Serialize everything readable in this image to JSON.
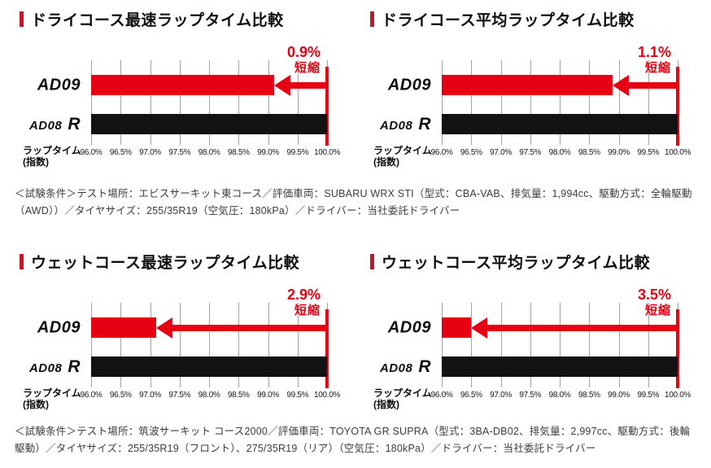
{
  "colors": {
    "brand_red": "#e60012",
    "title_marker_red": "#b81c2c",
    "bar_black": "#121212",
    "gridline_gray": "#a3a3a3",
    "note_text": "#3c3c3c"
  },
  "axis": {
    "label_line1": "ラップタイム",
    "label_line2": "(指数)",
    "min": 96.0,
    "max": 100.0,
    "ticks": [
      "96.0%",
      "96.5%",
      "97.0%",
      "97.5%",
      "98.0%",
      "98.5%",
      "99.0%",
      "99.5%",
      "100.0%"
    ]
  },
  "charts": [
    {
      "title": "ドライコース最速ラップタイム比較",
      "reduction_value": "0.9%",
      "reduction_word": "短縮",
      "bars": [
        {
          "label": "AD09",
          "label_suffix": "",
          "value": 99.1
        },
        {
          "label": "AD08",
          "label_suffix": "R",
          "value": 100.0
        }
      ]
    },
    {
      "title": "ドライコース平均ラップタイム比較",
      "reduction_value": "1.1%",
      "reduction_word": "短縮",
      "bars": [
        {
          "label": "AD09",
          "label_suffix": "",
          "value": 98.9
        },
        {
          "label": "AD08",
          "label_suffix": "R",
          "value": 100.0
        }
      ]
    },
    {
      "title": "ウェットコース最速ラップタイム比較",
      "reduction_value": "2.9%",
      "reduction_word": "短縮",
      "bars": [
        {
          "label": "AD09",
          "label_suffix": "",
          "value": 97.1
        },
        {
          "label": "AD08",
          "label_suffix": "R",
          "value": 100.0
        }
      ]
    },
    {
      "title": "ウェットコース平均ラップタイム比較",
      "reduction_value": "3.5%",
      "reduction_word": "短縮",
      "bars": [
        {
          "label": "AD09",
          "label_suffix": "",
          "value": 96.5
        },
        {
          "label": "AD08",
          "label_suffix": "R",
          "value": 100.0
        }
      ]
    }
  ],
  "notes": [
    {
      "text": "＜試験条件＞テスト場所：エビスサーキット東コース／評価車両：SUBARU WRX STI（型式：CBA-VAB、排気量：1,994cc、駆動方式：全輪駆動（AWD））／タイヤサイズ：255/35R19（空気圧：180kPa）／ドライバー：当社委託ドライバー"
    },
    {
      "text": "＜試験条件＞テスト場所：筑波サーキット コース2000／評価車両：TOYOTA GR SUPRA（型式：3BA-DB02、排気量：2,997cc、駆動方式：後輪駆動）／タイヤサイズ：255/35R19（フロント）、275/35R19（リア）（空気圧：180kPa）／ドライバー：当社委託ドライバー"
    }
  ],
  "chart_data": [
    {
      "type": "bar",
      "orientation": "horizontal",
      "title": "ドライコース最速ラップタイム比較",
      "categories": [
        "AD09",
        "AD08 R"
      ],
      "values": [
        99.1,
        100.0
      ],
      "series_colors": [
        "#e60012",
        "#121212"
      ],
      "annotation": "0.9%短縮",
      "xlabel": "ラップタイム(指数)",
      "xlim": [
        96.0,
        100.0
      ],
      "xtick_labels": [
        "96.0%",
        "96.5%",
        "97.0%",
        "97.5%",
        "98.0%",
        "98.5%",
        "99.0%",
        "99.5%",
        "100.0%"
      ],
      "grid": true,
      "legend": false
    },
    {
      "type": "bar",
      "orientation": "horizontal",
      "title": "ドライコース平均ラップタイム比較",
      "categories": [
        "AD09",
        "AD08 R"
      ],
      "values": [
        98.9,
        100.0
      ],
      "series_colors": [
        "#e60012",
        "#121212"
      ],
      "annotation": "1.1%短縮",
      "xlabel": "ラップタイム(指数)",
      "xlim": [
        96.0,
        100.0
      ],
      "xtick_labels": [
        "96.0%",
        "96.5%",
        "97.0%",
        "97.5%",
        "98.0%",
        "98.5%",
        "99.0%",
        "99.5%",
        "100.0%"
      ],
      "grid": true,
      "legend": false
    },
    {
      "type": "bar",
      "orientation": "horizontal",
      "title": "ウェットコース最速ラップタイム比較",
      "categories": [
        "AD09",
        "AD08 R"
      ],
      "values": [
        97.1,
        100.0
      ],
      "series_colors": [
        "#e60012",
        "#121212"
      ],
      "annotation": "2.9%短縮",
      "xlabel": "ラップタイム(指数)",
      "xlim": [
        96.0,
        100.0
      ],
      "xtick_labels": [
        "96.0%",
        "96.5%",
        "97.0%",
        "97.5%",
        "98.0%",
        "98.5%",
        "99.0%",
        "99.5%",
        "100.0%"
      ],
      "grid": true,
      "legend": false
    },
    {
      "type": "bar",
      "orientation": "horizontal",
      "title": "ウェットコース平均ラップタイム比較",
      "categories": [
        "AD09",
        "AD08 R"
      ],
      "values": [
        96.5,
        100.0
      ],
      "series_colors": [
        "#e60012",
        "#121212"
      ],
      "annotation": "3.5%短縮",
      "xlabel": "ラップタイム(指数)",
      "xlim": [
        96.0,
        100.0
      ],
      "xtick_labels": [
        "96.0%",
        "96.5%",
        "97.0%",
        "97.5%",
        "98.0%",
        "98.5%",
        "99.0%",
        "99.5%",
        "100.0%"
      ],
      "grid": true,
      "legend": false
    }
  ]
}
